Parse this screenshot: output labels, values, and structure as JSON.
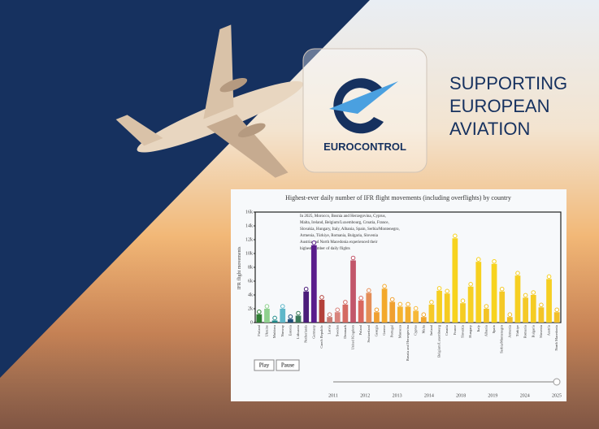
{
  "brand": {
    "logo_text": "EUROCONTROL",
    "slogan": [
      "SUPPORTING",
      "EUROPEAN",
      "AVIATION"
    ]
  },
  "controls": {
    "play": "Play",
    "pause": "Pause",
    "years": [
      "2011",
      "2012",
      "2013",
      "2014",
      "2018",
      "2019",
      "2024",
      "2025"
    ]
  },
  "chart_data": {
    "type": "bar",
    "title": "Highest-ever daily number of IFR flight movements (including overflights) by country",
    "y_label": "IFR flight movements",
    "annotation": [
      "In 2025, Morocco, Bosnia and Herzegovina, Cyprus,",
      "Malta, Ireland, Belgium/Luxembourg, Croatia, France,",
      "Slovakia, Hungary, Italy, Albania, Spain, Serbia/Montenegro,",
      "Armenia, Türkiye, Romania, Bulgaria, Slovenia",
      "Austria and North Macedonia experienced their",
      "highest number of daily flights"
    ],
    "categories": [
      "Finland",
      "Ukraine",
      "Moldova",
      "Norway",
      "Estonia",
      "Lithuania",
      "Netherlands",
      "Germany",
      "Czech Republic",
      "Latvia",
      "Sweden",
      "Denmark",
      "United Kingdom",
      "Poland",
      "Switzerland",
      "Georgia",
      "Greece",
      "Portugal",
      "Morocco",
      "Bosnia and Herzegovina",
      "Cyprus",
      "Malta",
      "Ireland",
      "Belgium/Luxembourg",
      "Croatia",
      "France",
      "Slovakia",
      "Hungary",
      "Italy",
      "Albania",
      "Spain",
      "Serbia/Montenegro",
      "Armenia",
      "Türkiye",
      "Romania",
      "Bulgaria",
      "Slovenia",
      "Austria",
      "North Macedonia"
    ],
    "values": [
      1200,
      2000,
      300,
      2000,
      500,
      1000,
      4500,
      11200,
      3300,
      800,
      1500,
      2600,
      9000,
      3200,
      4300,
      1500,
      4900,
      3000,
      2300,
      2300,
      1700,
      800,
      2600,
      4600,
      4200,
      12200,
      2800,
      5200,
      8800,
      2000,
      8500,
      4500,
      800,
      6800,
      3600,
      4000,
      2200,
      6300,
      1500
    ],
    "colors": [
      "#2e7d32",
      "#8fd18f",
      "#1e8a8a",
      "#5fb7c9",
      "#1f4e79",
      "#3a7a5a",
      "#4b1c7a",
      "#5a1d8c",
      "#b3403a",
      "#c97a72",
      "#d8837c",
      "#d46a62",
      "#c2566a",
      "#d9665e",
      "#e48d57",
      "#f0a030",
      "#f3a92c",
      "#f0a030",
      "#f5b32e",
      "#f3ae2c",
      "#f6b837",
      "#f2a62c",
      "#f6c928",
      "#f6cf22",
      "#f5cb23",
      "#f7d31e",
      "#f5cc23",
      "#f6d024",
      "#f7d11f",
      "#f3c426",
      "#f7d31e",
      "#f4c927",
      "#f2c02a",
      "#f6cf22",
      "#f4c927",
      "#f5cc23",
      "#f3c426",
      "#f6cf22",
      "#f2c02a"
    ],
    "ylim": [
      0,
      16000
    ],
    "yticks": [
      0,
      {
        "value": 2000,
        "label": "2k"
      },
      {
        "value": 4000,
        "label": "4k"
      },
      {
        "value": 6000,
        "label": "6k"
      },
      {
        "value": 8000,
        "label": "8k"
      },
      {
        "value": 10000,
        "label": "10k"
      },
      {
        "value": 12000,
        "label": "12k"
      },
      {
        "value": 14000,
        "label": "14k"
      },
      {
        "value": 16000,
        "label": "16k"
      }
    ],
    "grid": false
  }
}
